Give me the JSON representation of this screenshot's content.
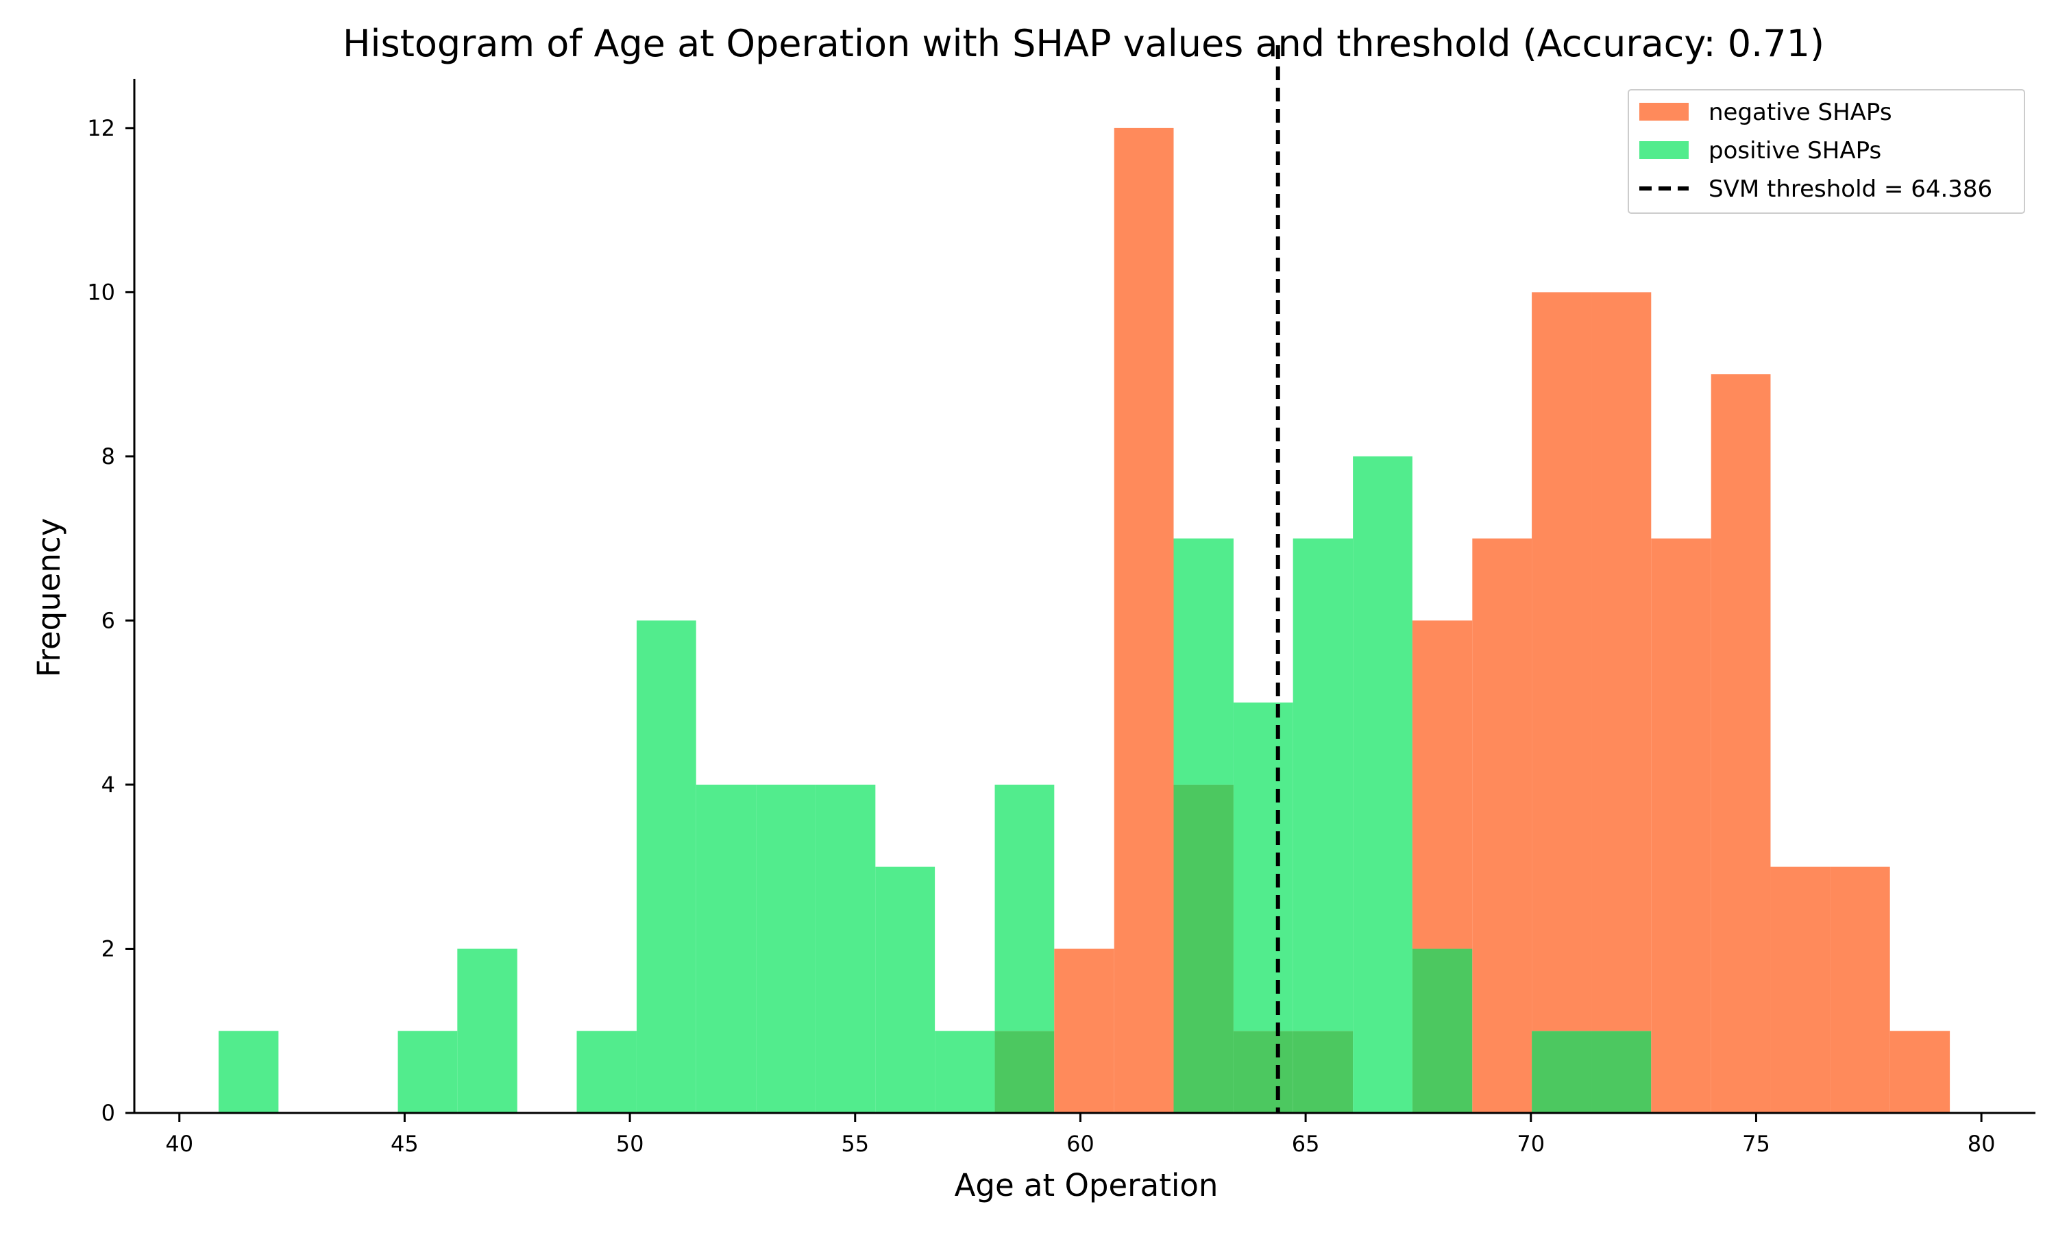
{
  "chart_data": {
    "type": "bar",
    "title": "Histogram of Age at Operation with SHAP values and threshold (Accuracy: 0.71)",
    "xlabel": "Age at Operation",
    "ylabel": "Frequency",
    "xlim": [
      39.0,
      81.2
    ],
    "ylim": [
      0,
      12.6
    ],
    "xticks": [
      40,
      45,
      50,
      55,
      60,
      65,
      70,
      75,
      80
    ],
    "yticks": [
      0,
      2,
      4,
      6,
      8,
      10,
      12
    ],
    "grid": false,
    "legend_position": "top-right",
    "bin_edges": [
      40.87,
      42.2,
      43.52,
      44.85,
      46.17,
      47.5,
      48.82,
      50.15,
      51.47,
      52.8,
      54.12,
      55.45,
      56.77,
      58.1,
      59.42,
      60.75,
      62.07,
      63.4,
      64.72,
      66.05,
      67.37,
      68.7,
      70.02,
      71.35,
      72.67,
      74.0,
      75.32,
      76.65,
      77.97,
      79.3
    ],
    "series": [
      {
        "name": "negative SHAPs",
        "color": "#ff8a5b",
        "values": [
          0,
          0,
          0,
          0,
          0,
          0,
          0,
          0,
          0,
          0,
          0,
          0,
          0,
          1,
          2,
          12,
          4,
          1,
          1,
          0,
          6,
          7,
          10,
          10,
          7,
          9,
          3,
          3,
          1
        ]
      },
      {
        "name": "positive SHAPs",
        "color": "#52ec8d",
        "values": [
          1,
          0,
          0,
          1,
          2,
          0,
          1,
          6,
          4,
          4,
          4,
          3,
          1,
          4,
          0,
          0,
          7,
          5,
          7,
          8,
          2,
          0,
          1,
          1,
          0,
          0,
          0,
          0,
          0
        ]
      }
    ],
    "overlap_color": "#4cc860",
    "threshold": {
      "label": "SVM threshold = 64.386",
      "value": 64.386,
      "color": "#000000"
    }
  }
}
